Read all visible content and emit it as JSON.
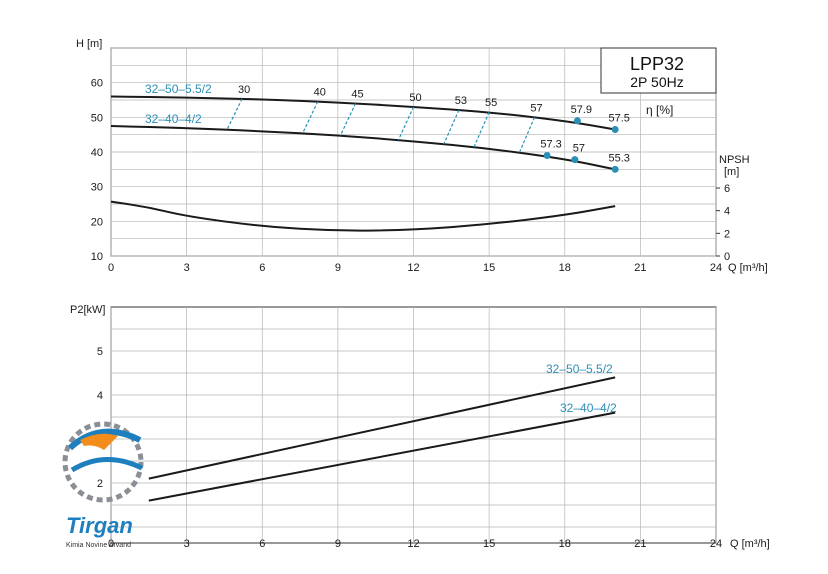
{
  "chart_data": [
    {
      "type": "line",
      "title": "LPP32",
      "subtitle": "2P  50Hz",
      "xlabel": "Q [m³/h]",
      "ylabel": "H [m]",
      "y2label": "NPSH [m]",
      "efficiency_label": "η  [%]",
      "xlim": [
        0,
        24
      ],
      "ylim": [
        10,
        70
      ],
      "y2lim": [
        0,
        6
      ],
      "x_ticks": [
        "0",
        "3",
        "6",
        "9",
        "12",
        "15",
        "18",
        "21",
        "24"
      ],
      "y_ticks": [
        "10",
        "20",
        "30",
        "40",
        "50",
        "60"
      ],
      "y2_ticks": [
        "0",
        "2",
        "4",
        "6"
      ],
      "grid": true,
      "series": [
        {
          "name": "32–50–5.5/2",
          "x": [
            0,
            3,
            6,
            9,
            12,
            15,
            18,
            20
          ],
          "y": [
            56.0,
            55.7,
            55.2,
            54.3,
            53.0,
            51.5,
            49.0,
            46.5
          ]
        },
        {
          "name": "32–40–4/2",
          "x": [
            0,
            3,
            6,
            9,
            12,
            15,
            18,
            20
          ],
          "y": [
            47.5,
            46.9,
            46.0,
            44.8,
            43.1,
            41.0,
            38.0,
            35.0
          ]
        }
      ],
      "npsh": {
        "x": [
          0,
          1.5,
          3,
          6,
          9,
          12,
          15,
          18,
          20
        ],
        "y": [
          4.8,
          4.3,
          3.5,
          2.6,
          2.2,
          2.3,
          2.8,
          3.6,
          4.4
        ]
      },
      "efficiency_points": [
        {
          "label": "30",
          "x": 5.2
        },
        {
          "label": "40",
          "x": 8.2
        },
        {
          "label": "45",
          "x": 9.7
        },
        {
          "label": "50",
          "x": 12.0
        },
        {
          "label": "53",
          "x": 13.8
        },
        {
          "label": "55",
          "x": 15.0
        },
        {
          "label": "57",
          "x": 16.8
        }
      ],
      "end_markers": [
        {
          "label": "57.9",
          "x": 18.5,
          "y": 49.0
        },
        {
          "label": "57.5",
          "x": 20.0,
          "y": 46.5
        },
        {
          "label": "57.3",
          "x": 17.3,
          "y": 39.0
        },
        {
          "label": "57",
          "x": 18.4,
          "y": 37.8
        },
        {
          "label": "55.3",
          "x": 20.0,
          "y": 35.0
        }
      ]
    },
    {
      "type": "line",
      "xlabel": "Q [m³/h]",
      "ylabel": "P2[kW]",
      "xlim": [
        0,
        24
      ],
      "ylim": [
        0,
        6
      ],
      "x_ticks": [
        "0",
        "3",
        "6",
        "9",
        "12",
        "15",
        "18",
        "21",
        "24"
      ],
      "y_ticks": [
        "2",
        "3",
        "4",
        "5"
      ],
      "grid": true,
      "series": [
        {
          "name": "32–50–5.5/2",
          "x": [
            1.5,
            20
          ],
          "y": [
            2.1,
            4.4
          ]
        },
        {
          "name": "32–40–4/2",
          "x": [
            1.5,
            20
          ],
          "y": [
            1.6,
            3.6
          ]
        }
      ]
    }
  ],
  "logo": {
    "name": "Tirgan",
    "tagline": "Kimia Novine Arvand",
    "colors": {
      "blue": "#1e7fbf",
      "orange": "#f28c1a",
      "gray": "#8a8f96"
    }
  },
  "colors": {
    "series_label": "#2a8fb5",
    "curve": "#1a1a1a",
    "marker": "#2a8fb5",
    "grid": "#9a9a9a"
  }
}
